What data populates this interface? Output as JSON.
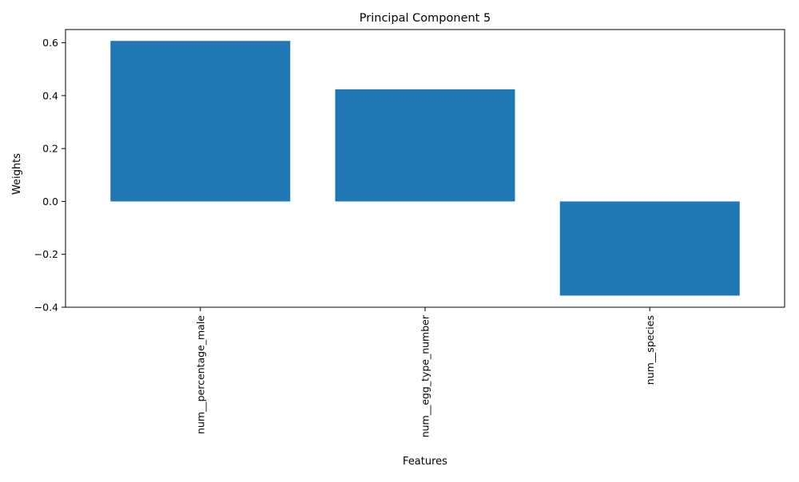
{
  "chart_data": {
    "type": "bar",
    "title": "Principal Component 5",
    "xlabel": "Features",
    "ylabel": "Weights",
    "categories": [
      "num__percentage_male",
      "num__egg_type_number",
      "num__species"
    ],
    "values": [
      0.607,
      0.424,
      -0.356
    ],
    "ylim": [
      -0.4,
      0.65
    ],
    "yticks": [
      -0.4,
      -0.2,
      0.0,
      0.2,
      0.4,
      0.6
    ],
    "ytick_labels": [
      "−0.4",
      "−0.2",
      "0.0",
      "0.2",
      "0.4",
      "0.6"
    ],
    "bar_color": "#1f77b4",
    "grid": false,
    "legend": "none"
  }
}
